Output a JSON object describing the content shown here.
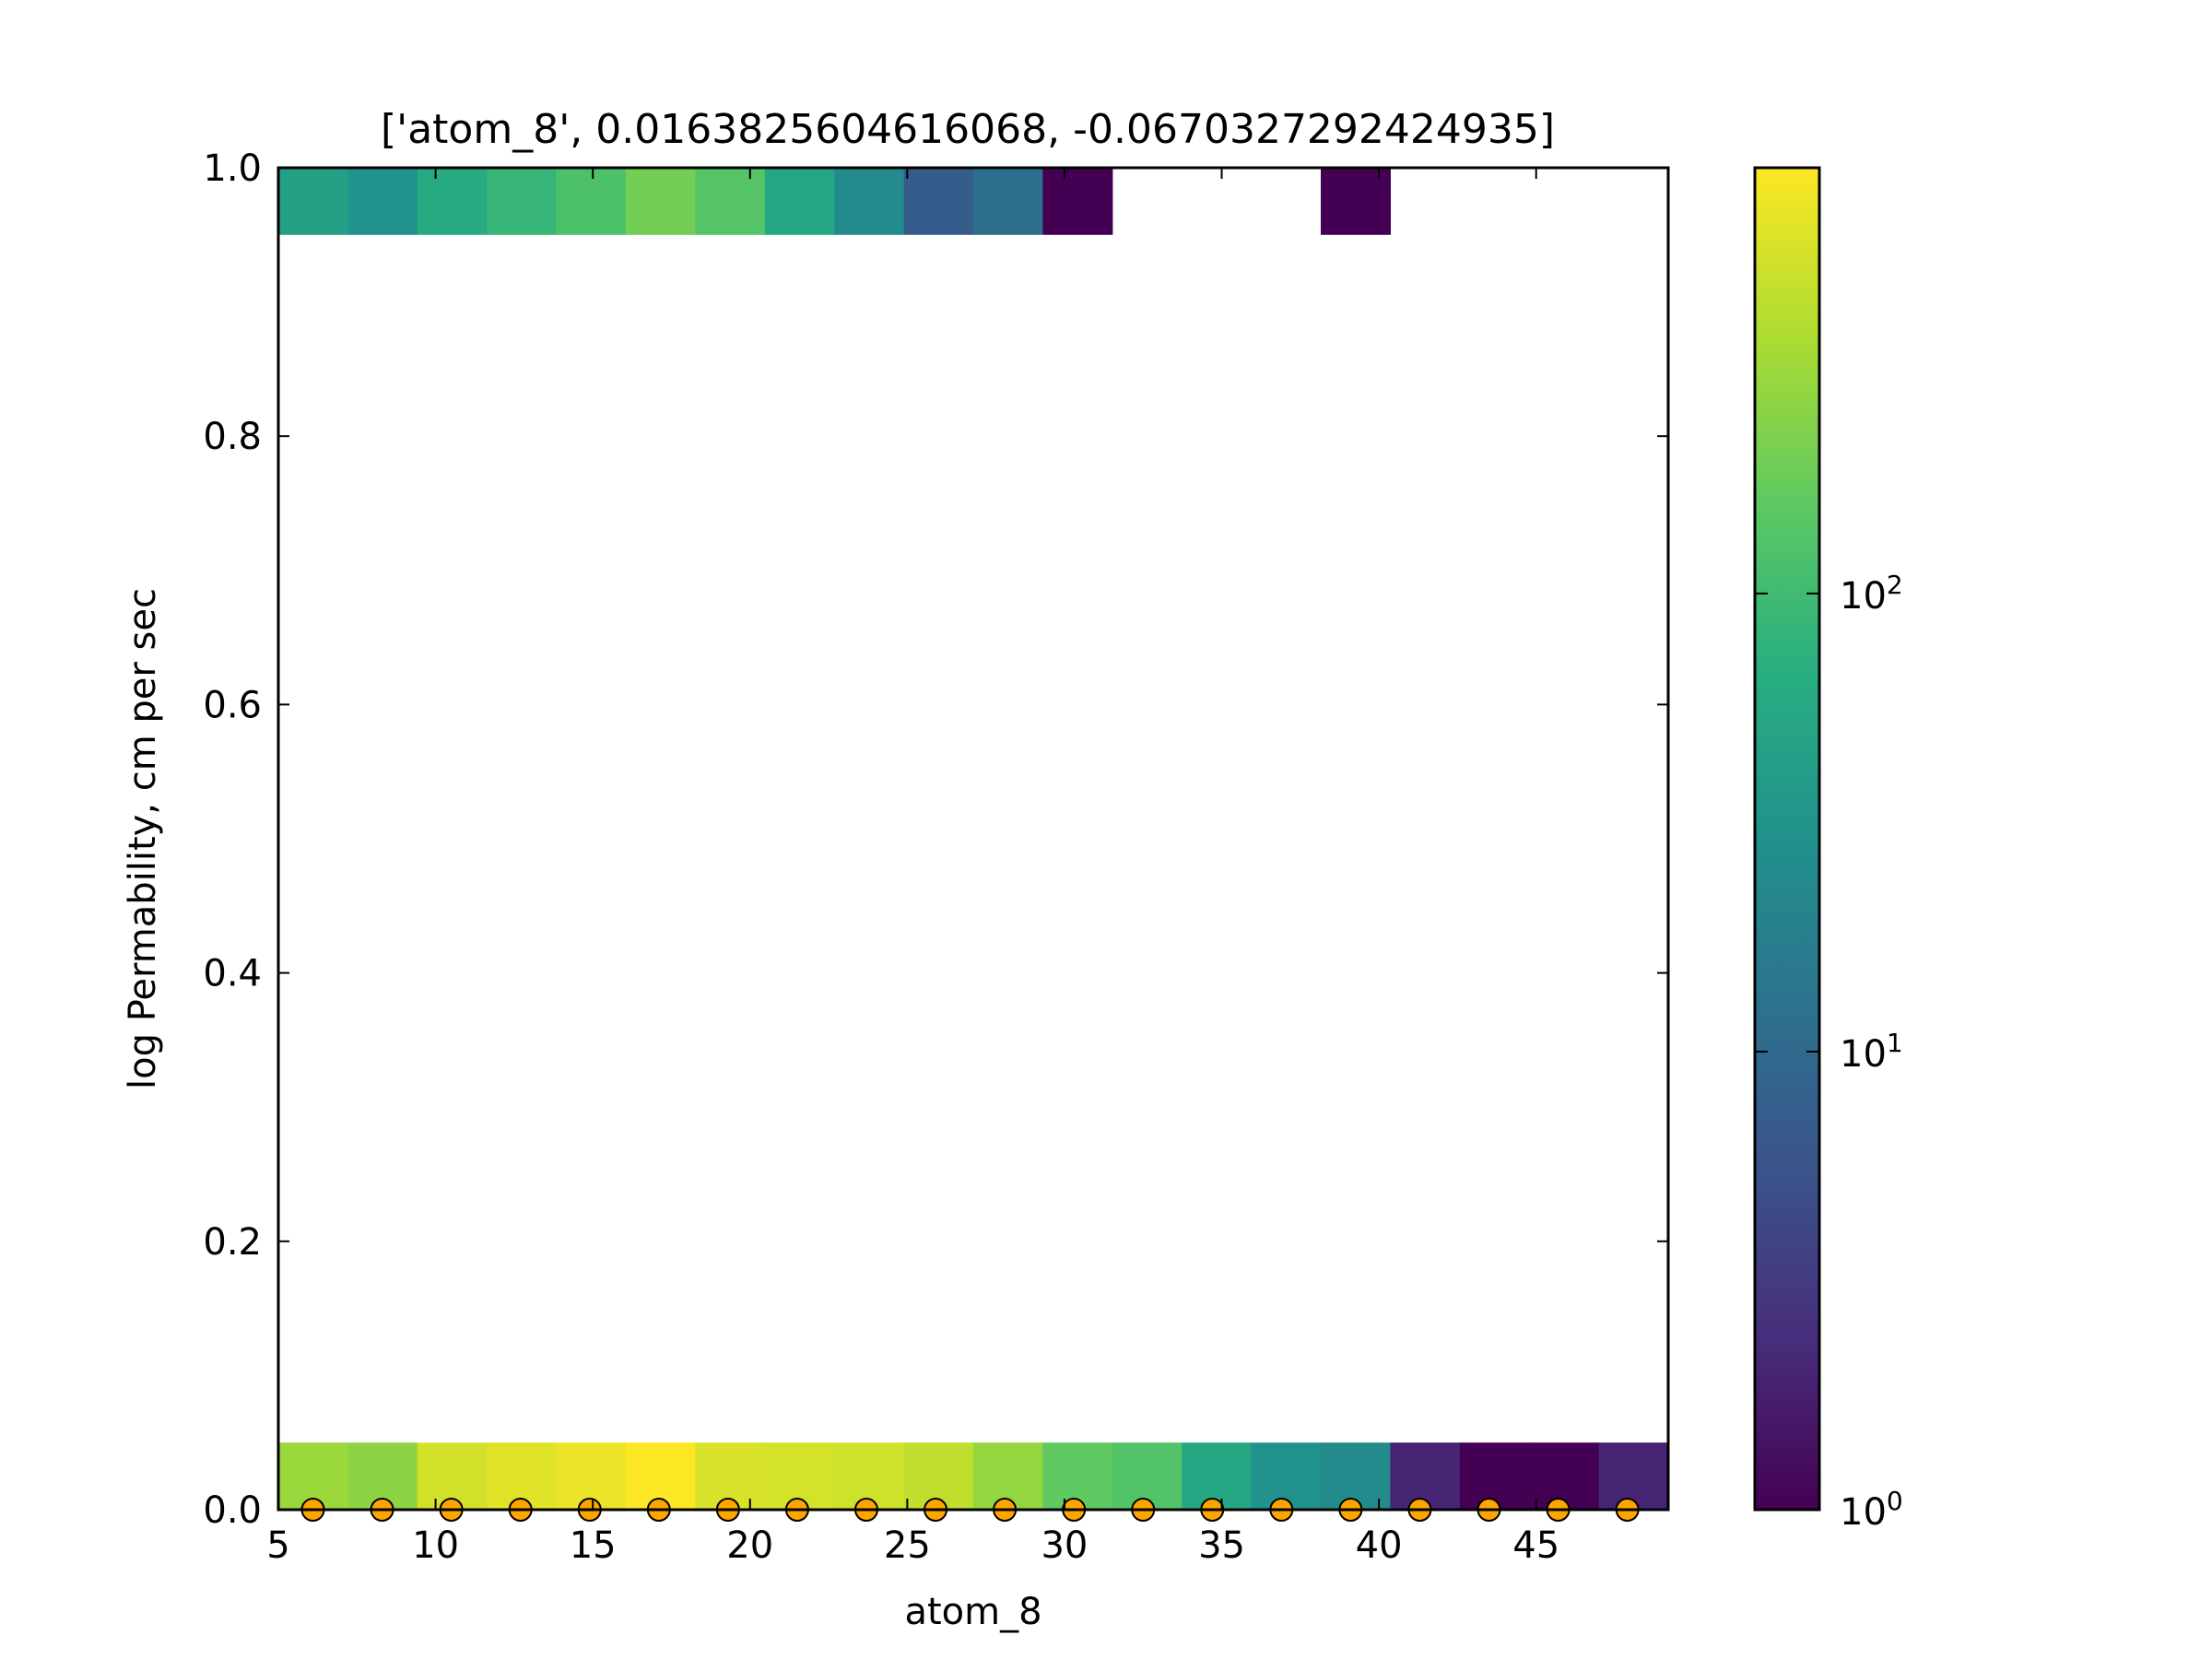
{
  "chart_data": {
    "type": "heatmap",
    "title": "['atom_8', 0.0163825604616068, -0.0670327292424935]",
    "xlabel": "atom_8",
    "ylabel": "log Permability, cm per sec",
    "xlim": [
      5,
      49.2
    ],
    "ylim": [
      0,
      1
    ],
    "x_ticks": [
      "5",
      "10",
      "15",
      "20",
      "25",
      "30",
      "35",
      "40",
      "45"
    ],
    "y_ticks": [
      "0.0",
      "0.2",
      "0.4",
      "0.6",
      "0.8",
      "1.0"
    ],
    "grid": false,
    "bin_edges_x": [
      5,
      7.21,
      9.42,
      11.63,
      13.84,
      16.05,
      18.26,
      20.47,
      22.68,
      24.89,
      27.1,
      29.31,
      31.52,
      33.73,
      35.94,
      38.15,
      40.36,
      42.57,
      44.78,
      46.99,
      49.2
    ],
    "rows": [
      {
        "y_range": [
          0,
          0.05
        ],
        "counts": [
          300,
          260,
          550,
          630,
          700,
          850,
          580,
          560,
          520,
          440,
          280,
          160,
          130,
          55,
          30,
          25,
          2,
          1,
          1,
          2
        ]
      },
      {
        "y_range": [
          0.95,
          1.0
        ],
        "counts": [
          45,
          30,
          60,
          85,
          120,
          200,
          135,
          55,
          25,
          7,
          12,
          1,
          null,
          null,
          null,
          1,
          null,
          null,
          null,
          null
        ]
      }
    ],
    "overlay_points": {
      "x": [
        6.1,
        8.3,
        10.5,
        12.7,
        14.9,
        17.1,
        19.3,
        21.5,
        23.7,
        25.9,
        28.1,
        30.3,
        32.5,
        34.7,
        36.9,
        39.1,
        41.3,
        43.5,
        45.7,
        47.9
      ],
      "y": [
        0,
        0,
        0,
        0,
        0,
        0,
        0,
        0,
        0,
        0,
        0,
        0,
        0,
        0,
        0,
        0,
        0,
        0,
        0,
        0
      ]
    },
    "colorbar": {
      "scale": "log",
      "colormap": "viridis",
      "range": [
        1,
        850
      ],
      "tick_values": [
        1,
        10,
        100
      ],
      "tick_labels": [
        {
          "base": "10",
          "exp": "0"
        },
        {
          "base": "10",
          "exp": "1"
        },
        {
          "base": "10",
          "exp": "2"
        }
      ]
    },
    "colors": {
      "marker_fill": "#ffa500",
      "marker_edge": "#000000",
      "line": "#ffa500"
    }
  }
}
